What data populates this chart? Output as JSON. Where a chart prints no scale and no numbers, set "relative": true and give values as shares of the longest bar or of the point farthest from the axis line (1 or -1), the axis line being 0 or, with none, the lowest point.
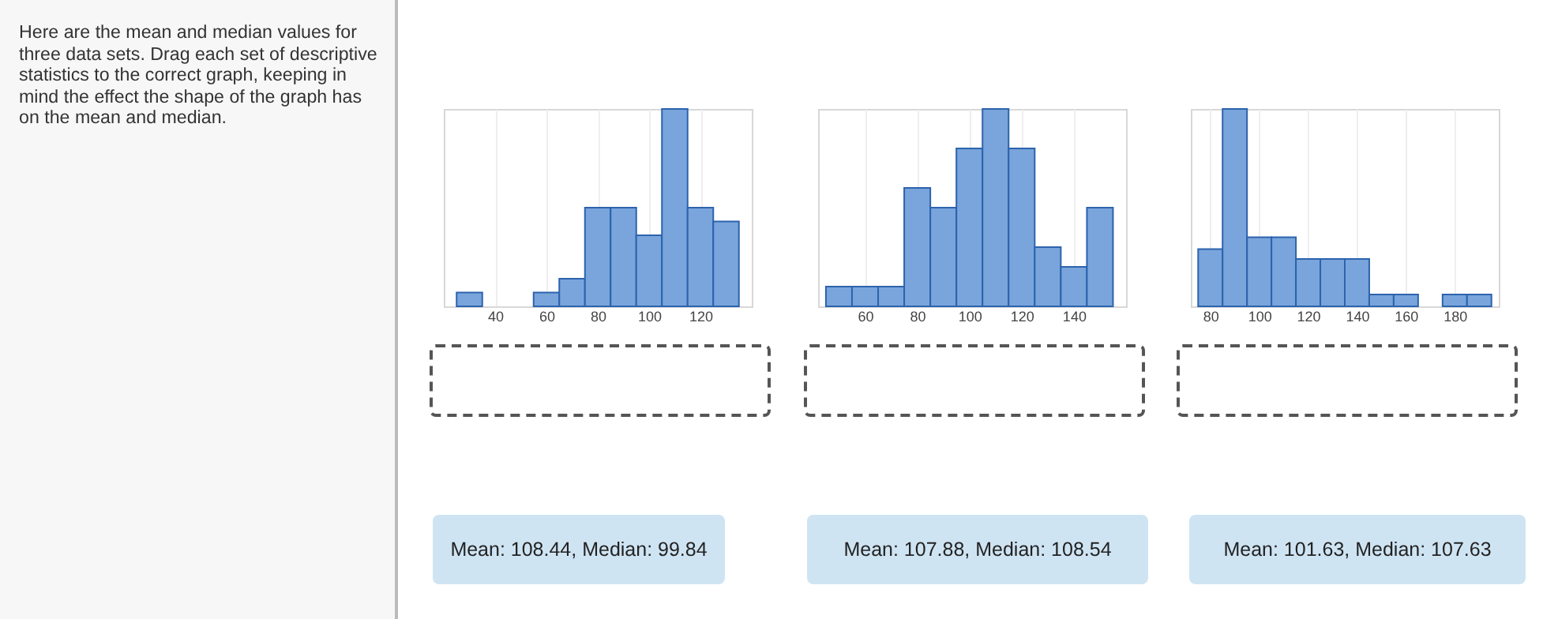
{
  "chart_data": [
    {
      "type": "other",
      "annotations": [
        "Here are the mean and median values for three data sets. Drag each set of descriptive statistics to the correct graph, keeping in mind the effect the shape of the graph has on the mean and median.",
        "Mean: 108.44, Median: 99.84",
        "Mean: 107.88, Median: 108.54",
        "Mean: 101.63, Median: 107.63"
      ]
    },
    {
      "type": "bar",
      "relative": true,
      "x": [
        30,
        40,
        50,
        60,
        70,
        80,
        90,
        100,
        110,
        120,
        130
      ],
      "values": [
        0.07,
        0,
        0,
        0.07,
        0.14,
        0.5,
        0.5,
        0.36,
        1,
        0.5,
        0.43
      ],
      "color": "#79a5dc",
      "xlim": [
        20,
        140
      ],
      "xticks": [
        40,
        60,
        80,
        100,
        120
      ],
      "grid": "x"
    },
    {
      "type": "bar",
      "relative": true,
      "x": [
        50,
        60,
        70,
        80,
        90,
        100,
        110,
        120,
        130,
        140,
        150
      ],
      "values": [
        0.1,
        0.1,
        0.1,
        0.6,
        0.5,
        0.8,
        1,
        0.8,
        0.3,
        0.2,
        0.5
      ],
      "color": "#79a5dc",
      "xlim": [
        42,
        160
      ],
      "xticks": [
        60,
        80,
        100,
        120,
        140
      ],
      "grid": "x"
    },
    {
      "type": "bar",
      "relative": true,
      "x": [
        80,
        90,
        100,
        110,
        120,
        130,
        140,
        150,
        160,
        170,
        180,
        190
      ],
      "values": [
        0.29,
        1,
        0.35,
        0.35,
        0.24,
        0.24,
        0.24,
        0.06,
        0.06,
        0,
        0.06,
        0.06
      ],
      "color": "#79a5dc",
      "xlim": [
        72,
        198
      ],
      "xticks": [
        80,
        100,
        120,
        140,
        160,
        180
      ],
      "grid": "x"
    }
  ]
}
